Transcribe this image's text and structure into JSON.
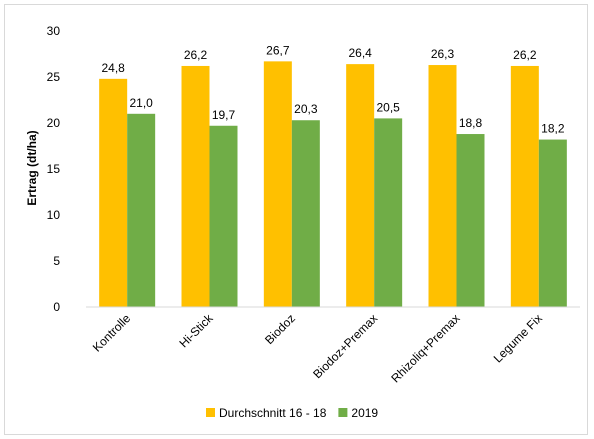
{
  "chart_data": {
    "type": "bar",
    "title": "",
    "xlabel": "",
    "ylabel": "Ertrag (dt/ha)",
    "ylim": [
      0,
      30
    ],
    "yticks": [
      0,
      5,
      10,
      15,
      20,
      25,
      30
    ],
    "grid": false,
    "legend_position": "bottom",
    "categories": [
      "Kontrolle",
      "Hi-Stick",
      "Biodoz",
      "Biodoz+Premax",
      "Rhizoliq+Premax",
      "Legume Fix"
    ],
    "series": [
      {
        "name": "Durchschnitt 16 - 18",
        "color": "#ffc000",
        "values": [
          24.8,
          26.2,
          26.7,
          26.4,
          26.3,
          26.2
        ],
        "labels": [
          "24,8",
          "26,2",
          "26,7",
          "26,4",
          "26,3",
          "26,2"
        ]
      },
      {
        "name": "2019",
        "color": "#70ad47",
        "values": [
          21.0,
          19.7,
          20.3,
          20.5,
          18.8,
          18.2
        ],
        "labels": [
          "21,0",
          "19,7",
          "20,3",
          "20,5",
          "18,8",
          "18,2"
        ]
      }
    ]
  }
}
